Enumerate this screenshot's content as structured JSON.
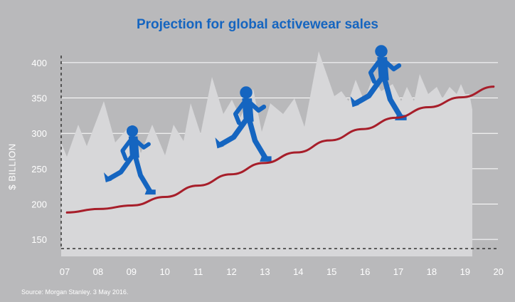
{
  "chart_data": {
    "type": "line",
    "title": "Projection for global activewear sales",
    "ylabel": "$ BILLION",
    "xlabel": "",
    "x": [
      "07",
      "08",
      "09",
      "10",
      "11",
      "12",
      "13",
      "14",
      "15",
      "16",
      "17",
      "18",
      "19",
      "20"
    ],
    "series": [
      {
        "values": [
          188,
          193,
          198,
          210,
          226,
          242,
          258,
          273,
          290,
          306,
          322,
          337,
          351,
          366
        ]
      }
    ],
    "ylim": [
      137,
      410
    ],
    "yticks": [
      150,
      200,
      250,
      300,
      350,
      400
    ],
    "grid": true,
    "colors": {
      "line": "#a71e2a",
      "runners": "#1565c0",
      "title": "#1565c0",
      "background": "#b9b9bb",
      "mountains": "#d7d7d9"
    }
  },
  "source": "Source: Morgan Stanley. 3 May 2016.",
  "icons": [
    "runner-icon"
  ]
}
